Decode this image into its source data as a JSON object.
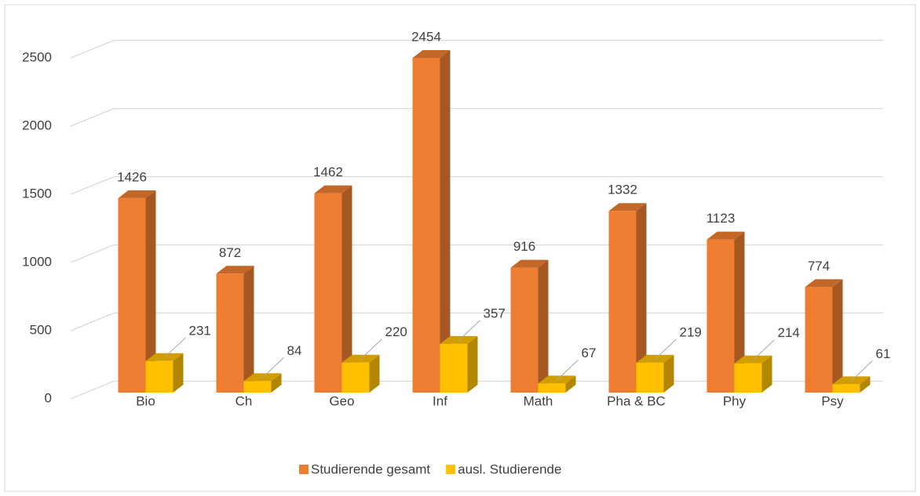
{
  "chart_data": {
    "type": "bar3d",
    "categories": [
      "Bio",
      "Ch",
      "Geo",
      "Inf",
      "Math",
      "Pha & BC",
      "Phy",
      "Psy"
    ],
    "series": [
      {
        "name": "Studierende gesamt",
        "color": "#ED7D31",
        "values": [
          1426,
          872,
          1462,
          2454,
          916,
          1332,
          1123,
          774
        ]
      },
      {
        "name": "ausl. Studierende",
        "color": "#FFC000",
        "values": [
          231,
          84,
          220,
          357,
          67,
          219,
          214,
          61
        ]
      }
    ],
    "ylim": [
      0,
      2500
    ],
    "yticks": [
      0,
      500,
      1000,
      1500,
      2000,
      2500
    ],
    "grid": true,
    "legend": "bottom"
  }
}
